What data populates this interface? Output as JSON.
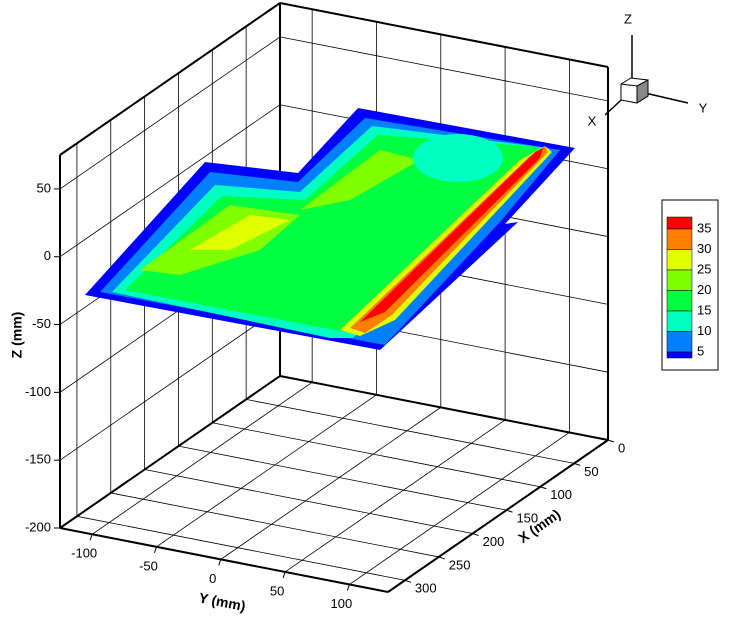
{
  "chart_data": {
    "type": "contour3d",
    "xlabel": "X (mm)",
    "ylabel": "Y (mm)",
    "zlabel": "Z (mm)",
    "xlim": [
      0,
      325
    ],
    "ylim": [
      -125,
      130
    ],
    "zlim": [
      -200,
      75
    ],
    "xticks": [
      0,
      50,
      100,
      150,
      200,
      250,
      300
    ],
    "yticks": [
      -100,
      -50,
      0,
      50,
      100
    ],
    "zticks": [
      -200,
      -150,
      -100,
      -50,
      0,
      50
    ],
    "grid": true,
    "levels": [
      35,
      30,
      25,
      20,
      15,
      10,
      5
    ],
    "level_colors": [
      "#ff0000",
      "#ff8000",
      "#e0ff00",
      "#80ff00",
      "#00ff40",
      "#00ffc0",
      "#0080ff",
      "#0000ff"
    ],
    "orientation_axes": [
      "X",
      "Y",
      "Z"
    ]
  }
}
